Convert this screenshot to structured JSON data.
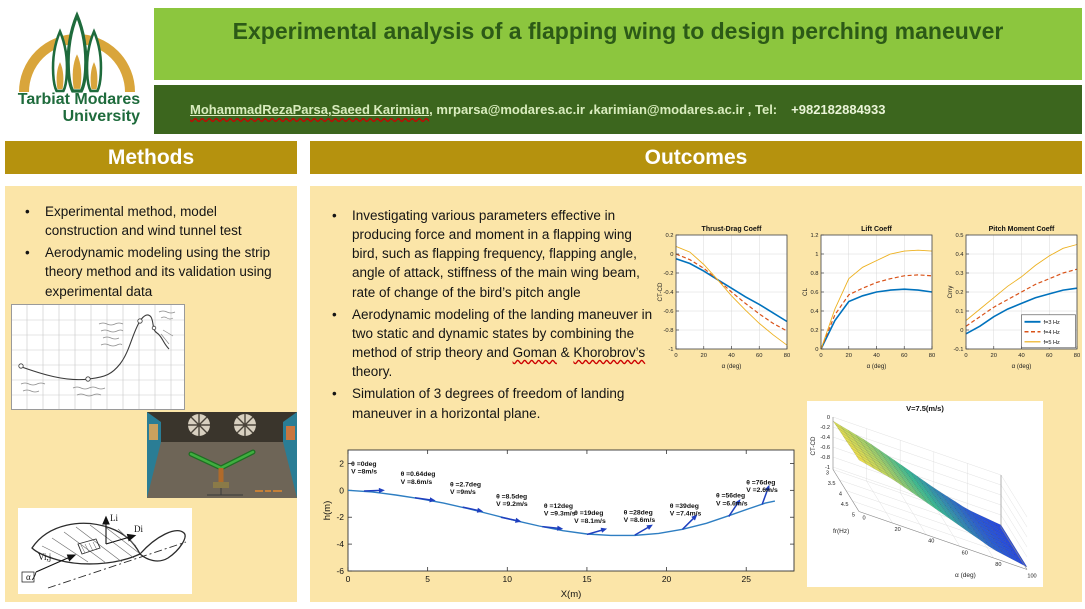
{
  "header": {
    "logo_line1": "Tarbiat Modares",
    "logo_line2": "University",
    "title": "Experimental analysis of a flapping wing to design perching maneuver",
    "authors": "MohammadRezaParsa,Saeed Karimian",
    "contact": ", mrparsa@modares.ac.ir ،karimian@modares.ac.ir , Tel:",
    "tel": "+982182884933"
  },
  "methods": {
    "heading": "Methods",
    "bullets": [
      "Experimental method, model construction and wind tunnel test",
      "Aerodynamic modeling using the strip theory method and its validation using experimental data"
    ],
    "diagram": {
      "lift": "Li",
      "drag": "Di",
      "velocity": "Vi,j",
      "alpha": "α"
    }
  },
  "outcomes": {
    "heading": "Outcomes",
    "bullets": [
      "Investigating various parameters effective in producing force and moment in a flapping wing bird, such as flapping frequency, flapping angle, angle of attack, stiffness of the main wing beam, rate of change of the bird’s pitch angle",
      {
        "pre": "Aerodynamic modeling of the landing maneuver in two static and dynamic states by combining the method of strip theory and ",
        "goman": "Goman",
        "amp": " & ",
        "khorobrov": "Khorobrov’s",
        "post": " theory."
      },
      "Simulation of 3 degrees of freedom of landing maneuver in a horizontal plane."
    ]
  },
  "colors": {
    "light_green_band": "#8CC63E",
    "dark_green_band": "#3C661E",
    "title_text": "#2C5A17",
    "gold_header": "#B5920E",
    "cream_panel": "#FBE5A8",
    "matlab_blue": "#0072BD",
    "matlab_red": "#D95319",
    "matlab_yellow": "#EDB120",
    "trajectory_curve": "#2E7EC2",
    "trajectory_arrow": "#1F3FBF",
    "squiggle_red": "#CC0000"
  },
  "chart_data": [
    {
      "id": "thrust_drag",
      "type": "line",
      "title": "Thrust-Drag Coeff",
      "xlabel": "α (deg)",
      "ylabel": "CT-CD",
      "xlim": [
        0,
        80
      ],
      "ylim": [
        -1,
        0.2
      ],
      "xticks": [
        0,
        20,
        40,
        60,
        80
      ],
      "yticks": [
        0.2,
        0,
        -0.2,
        -0.4,
        -0.6,
        -0.8,
        -1
      ],
      "grid": true,
      "legend": false,
      "x": [
        0,
        10,
        20,
        30,
        40,
        50,
        60,
        70,
        80
      ],
      "series": [
        {
          "name": "f=3 Hz",
          "color": "#0072BD",
          "dash": null,
          "width": 1.6,
          "values": [
            -0.05,
            -0.1,
            -0.18,
            -0.27,
            -0.36,
            -0.45,
            -0.53,
            -0.62,
            -0.71
          ]
        },
        {
          "name": "f=4 Hz",
          "color": "#D95319",
          "dash": "4,2.5",
          "width": 1.2,
          "values": [
            0.0,
            -0.06,
            -0.15,
            -0.27,
            -0.4,
            -0.52,
            -0.63,
            -0.73,
            -0.81
          ]
        },
        {
          "name": "f=5 Hz",
          "color": "#EDB120",
          "dash": null,
          "width": 0.9,
          "values": [
            0.08,
            0.02,
            -0.11,
            -0.27,
            -0.44,
            -0.59,
            -0.73,
            -0.85,
            -0.96
          ]
        }
      ]
    },
    {
      "id": "lift",
      "type": "line",
      "title": "Lift Coeff",
      "xlabel": "α (deg)",
      "ylabel": "CL",
      "xlim": [
        0,
        80
      ],
      "ylim": [
        0,
        1.2
      ],
      "xticks": [
        0,
        20,
        40,
        60,
        80
      ],
      "yticks": [
        0,
        0.2,
        0.4,
        0.6,
        0.8,
        1,
        1.2
      ],
      "grid": true,
      "legend": false,
      "x": [
        0,
        10,
        20,
        30,
        40,
        50,
        60,
        70,
        80
      ],
      "series": [
        {
          "name": "f=3 Hz",
          "color": "#0072BD",
          "dash": null,
          "width": 1.6,
          "values": [
            0,
            0.3,
            0.5,
            0.56,
            0.6,
            0.62,
            0.63,
            0.62,
            0.6
          ]
        },
        {
          "name": "f=4 Hz",
          "color": "#D95319",
          "dash": "4,2.5",
          "width": 1.2,
          "values": [
            0,
            0.36,
            0.57,
            0.64,
            0.7,
            0.74,
            0.77,
            0.78,
            0.77
          ]
        },
        {
          "name": "f=5 Hz",
          "color": "#EDB120",
          "dash": null,
          "width": 0.9,
          "values": [
            0,
            0.42,
            0.74,
            0.86,
            0.93,
            1.0,
            1.03,
            1.04,
            1.03
          ]
        }
      ]
    },
    {
      "id": "pitch_moment",
      "type": "line",
      "title": "Pitch Moment Coeff",
      "xlabel": "α (deg)",
      "ylabel": "Cmy",
      "xlim": [
        0,
        80
      ],
      "ylim": [
        -0.1,
        0.5
      ],
      "xticks": [
        0,
        20,
        40,
        60,
        80
      ],
      "yticks": [
        -0.1,
        0,
        0.1,
        0.2,
        0.3,
        0.4,
        0.5
      ],
      "grid": true,
      "legend": {
        "position": "lower-right"
      },
      "x": [
        0,
        10,
        20,
        30,
        40,
        50,
        60,
        70,
        80
      ],
      "series": [
        {
          "name": "f=3 Hz",
          "color": "#0072BD",
          "dash": null,
          "width": 1.6,
          "values": [
            -0.02,
            0.02,
            0.07,
            0.11,
            0.14,
            0.17,
            0.19,
            0.21,
            0.22
          ]
        },
        {
          "name": "f=4 Hz",
          "color": "#D95319",
          "dash": "4,2.5",
          "width": 1.2,
          "values": [
            0.02,
            0.07,
            0.12,
            0.16,
            0.2,
            0.24,
            0.27,
            0.3,
            0.32
          ]
        },
        {
          "name": "f=5 Hz",
          "color": "#EDB120",
          "dash": null,
          "width": 0.9,
          "values": [
            0.05,
            0.11,
            0.17,
            0.23,
            0.28,
            0.34,
            0.39,
            0.43,
            0.45
          ]
        }
      ]
    },
    {
      "id": "trajectory",
      "type": "line",
      "title": "",
      "xlabel": "X(m)",
      "ylabel": "h(m)",
      "xlim": [
        0,
        28
      ],
      "ylim": [
        -6,
        3
      ],
      "xticks": [
        0,
        5,
        10,
        15,
        20,
        25
      ],
      "yticks": [
        2,
        0,
        -2,
        -4,
        -6
      ],
      "grid": false,
      "curve_color": "#2E7EC2",
      "arrow_color": "#1F3FBF",
      "path_x": [
        0,
        1.5,
        3,
        4.5,
        6,
        7.5,
        9,
        10.5,
        12,
        13.5,
        15,
        16.5,
        18,
        19.5,
        21,
        22.5,
        24,
        25.2,
        26.2,
        26.8
      ],
      "path_y": [
        0,
        -0.12,
        -0.35,
        -0.62,
        -0.95,
        -1.35,
        -1.8,
        -2.25,
        -2.65,
        -3.0,
        -3.25,
        -3.35,
        -3.35,
        -3.2,
        -2.9,
        -2.45,
        -1.85,
        -1.35,
        -0.95,
        -0.8
      ],
      "annotations": [
        {
          "theta": "θ =0deg",
          "v": "V =8m/s",
          "x": 1.0,
          "y": -0.05,
          "angle": 2,
          "lx": 0.2,
          "ly": 1.8
        },
        {
          "theta": "θ =0.64deg",
          "v": "V =8.6m/s",
          "x": 4.2,
          "y": -0.55,
          "angle": -8,
          "lx": 3.3,
          "ly": 1.05
        },
        {
          "theta": "θ =2.7deg",
          "v": "V =9m/s",
          "x": 7.2,
          "y": -1.25,
          "angle": -12,
          "lx": 6.4,
          "ly": 0.3
        },
        {
          "theta": "θ =8.5deg",
          "v": "V =9.2m/s",
          "x": 9.6,
          "y": -2.0,
          "angle": -12,
          "lx": 9.3,
          "ly": -0.6
        },
        {
          "theta": "θ =12deg",
          "v": "V =9.3m/s",
          "x": 12.2,
          "y": -2.7,
          "angle": -6,
          "lx": 12.3,
          "ly": -1.3
        },
        {
          "theta": "θ =19deg",
          "v": "V =8.1m/s",
          "x": 15.0,
          "y": -3.28,
          "angle": 16,
          "lx": 14.2,
          "ly": -1.85
        },
        {
          "theta": "θ =28deg",
          "v": "V =8.6m/s",
          "x": 18.0,
          "y": -3.33,
          "angle": 30,
          "lx": 17.3,
          "ly": -1.8
        },
        {
          "theta": "θ =39deg",
          "v": "V =7.4m/s",
          "x": 21.0,
          "y": -2.9,
          "angle": 45,
          "lx": 20.2,
          "ly": -1.3
        },
        {
          "theta": "θ =56deg",
          "v": "V =6.6m/s",
          "x": 23.9,
          "y": -1.95,
          "angle": 56,
          "lx": 23.1,
          "ly": -0.55
        },
        {
          "theta": "θ =76deg",
          "v": "V =2.6m/s",
          "x": 26.0,
          "y": -1.05,
          "angle": 70,
          "lx": 25.0,
          "ly": 0.45
        }
      ]
    },
    {
      "id": "surface",
      "type": "surface3d",
      "title": "V=7.5(m/s)",
      "xlabel": "α (deg)",
      "ylabel": "fr(Hz)",
      "zlabel": "CT-CD",
      "alpha": [
        0,
        20,
        40,
        60,
        80,
        100
      ],
      "freq": [
        3,
        3.5,
        4,
        4.5,
        5
      ],
      "alpha_ticks": [
        0,
        20,
        40,
        60,
        80,
        100
      ],
      "freq_ticks": [
        3,
        3.5,
        4,
        4.5,
        5
      ],
      "zticks": [
        0,
        -0.2,
        -0.4,
        -0.6,
        -0.8,
        -1
      ],
      "zlim": [
        -1,
        0
      ],
      "z": [
        [
          -0.08,
          -0.25,
          -0.48,
          -0.72,
          -0.92,
          -1.0
        ],
        [
          -0.06,
          -0.23,
          -0.46,
          -0.7,
          -0.91,
          -1.0
        ],
        [
          -0.05,
          -0.21,
          -0.44,
          -0.68,
          -0.9,
          -1.0
        ],
        [
          -0.03,
          -0.19,
          -0.42,
          -0.66,
          -0.89,
          -1.0
        ],
        [
          -0.02,
          -0.17,
          -0.4,
          -0.64,
          -0.88,
          -1.0
        ]
      ]
    }
  ]
}
